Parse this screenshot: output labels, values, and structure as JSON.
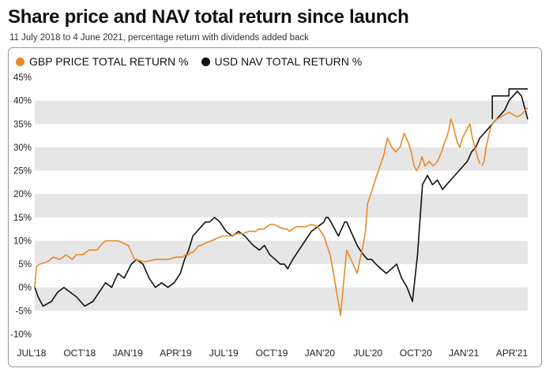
{
  "header": {
    "title": "Share price and NAV total return since launch",
    "subtitle": "11 July 2018 to 4 June 2021, percentage return with dividends added back"
  },
  "colors": {
    "gbp": "#e8892a",
    "usd": "#111111",
    "band": "#e6e6e6"
  },
  "chart_data": {
    "type": "line",
    "grid": "alternating horizontal bands",
    "legend_position": "top-left",
    "ylim": [
      -10,
      45
    ],
    "y_ticks": [
      -10,
      -5,
      0,
      5,
      10,
      15,
      20,
      25,
      30,
      35,
      40,
      45
    ],
    "y_tick_labels": [
      "-10%",
      "-5%",
      "0%",
      "5%",
      "10%",
      "15%",
      "20%",
      "25%",
      "30%",
      "35%",
      "40%",
      "45%"
    ],
    "x_tick_labels": [
      "JUL'18",
      "OCT'18",
      "JAN'19",
      "APR'19",
      "JUL'19",
      "OCT'19",
      "JAN'20",
      "JUL'20",
      "OCT'20",
      "JAN'21",
      "APR'21"
    ],
    "series": [
      {
        "name": "GBP PRICE TOTAL RETURN %",
        "color": "#e8892a",
        "x": [
          0,
          4,
          12,
          30,
          45,
          60,
          75,
          90,
          100,
          115,
          130,
          150,
          158,
          170,
          200,
          225,
          240,
          265,
          290,
          320,
          340,
          355,
          362,
          370,
          375,
          380,
          385,
          390,
          395,
          400,
          410,
          425,
          437,
          450,
          460,
          472,
          485,
          500,
          515,
          530,
          540,
          550,
          558,
          566,
          575,
          586,
          600,
          607,
          612,
          620,
          628,
          640,
          652,
          665,
          680,
          695,
          710,
          724,
          735,
          750,
          765,
          775,
          782,
          789,
          795,
          800,
          808,
          815,
          822,
          830,
          838,
          848,
          858,
          868,
          878,
          888,
          898,
          905,
          912,
          918,
          924,
          931,
          938,
          948,
          958,
          968,
          978,
          985,
          990,
          996,
          1000,
          1005,
          1010,
          1016,
          1022,
          1028,
          1034,
          1040,
          1046,
          1052,
          1058,
          1064,
          1070
        ],
        "y": [
          0,
          4.5,
          5,
          5.5,
          6.5,
          6,
          7,
          6,
          7,
          7,
          8,
          8,
          9,
          10,
          10,
          9,
          6,
          5.5,
          6,
          6,
          6.5,
          6.5,
          7,
          7,
          7.5,
          7.5,
          8,
          8.5,
          9,
          9,
          9.5,
          10,
          10.5,
          11,
          11,
          11,
          11.5,
          11.5,
          12,
          12,
          12.5,
          12.5,
          13,
          13.5,
          13.5,
          13,
          12.5,
          12.5,
          12,
          12.5,
          13,
          13,
          13,
          13.5,
          13,
          11,
          7,
          0,
          -6,
          8,
          5,
          3,
          6,
          9,
          12,
          18,
          20,
          22,
          24,
          26,
          28,
          32,
          30,
          29,
          30,
          33,
          31,
          29,
          26,
          25,
          26,
          28,
          26,
          27,
          26,
          27,
          29,
          31,
          32,
          34,
          36,
          35,
          33,
          31,
          30,
          32,
          33,
          34,
          35,
          32,
          30,
          28,
          26.5
        ],
        "x_tail": [
          1075,
          1080,
          1085,
          1090,
          1095,
          1100,
          1110,
          1120,
          1130,
          1140,
          1150,
          1160,
          1170,
          1180,
          1185
        ],
        "y_tail": [
          26,
          27,
          30,
          32,
          34,
          35,
          36,
          36.5,
          37,
          37.5,
          37,
          36.5,
          37,
          38,
          38.5
        ]
      },
      {
        "name": "USD NAV TOTAL RETURN %",
        "color": "#111111",
        "x": [
          0,
          8,
          20,
          40,
          55,
          70,
          85,
          100,
          120,
          140,
          155,
          170,
          185,
          200,
          215,
          232,
          245,
          260,
          275,
          290,
          305,
          320,
          335,
          350,
          360,
          370,
          380,
          390,
          400,
          410,
          420,
          432,
          445,
          460,
          475,
          490,
          505,
          515,
          525,
          540,
          552,
          565,
          578,
          590,
          600,
          608,
          614,
          620,
          635,
          650,
          665,
          680,
          695,
          700,
          705,
          712,
          718,
          724,
          730,
          735,
          740,
          745,
          750,
          755,
          760,
          765,
          770,
          775,
          782,
          790,
          800,
          810,
          820,
          832,
          845,
          858,
          870,
          882,
          895,
          908,
          920,
          932,
          944,
          956,
          968,
          980,
          990,
          1000,
          1010,
          1020,
          1030,
          1040,
          1050,
          1060,
          1070,
          1080,
          1090,
          1100,
          1110,
          1120,
          1130,
          1140,
          1150,
          1160,
          1170,
          1185
        ],
        "y": [
          0,
          -2,
          -4,
          -3,
          -1,
          0,
          -1,
          -2,
          -4,
          -3,
          -1,
          1,
          0,
          3,
          2,
          5,
          6,
          5,
          2,
          0,
          1,
          0,
          1,
          3,
          6,
          8,
          11,
          12,
          13,
          14,
          14,
          15,
          14,
          12,
          11,
          12,
          11,
          10,
          9,
          8,
          9,
          7,
          6,
          5,
          5,
          4,
          5,
          6,
          8,
          10,
          12,
          13,
          14,
          15,
          15,
          14,
          13,
          12,
          11,
          12,
          13,
          14,
          14,
          13,
          12,
          11,
          10,
          9,
          8,
          7,
          6,
          6,
          5,
          4,
          3,
          4,
          5,
          2,
          0,
          -3,
          7,
          22,
          24,
          22,
          23,
          21,
          22,
          23,
          24,
          25,
          26,
          27,
          29,
          30,
          32,
          33,
          34,
          35,
          36,
          37,
          38,
          40,
          41,
          42,
          41,
          36
        ]
      }
    ]
  }
}
